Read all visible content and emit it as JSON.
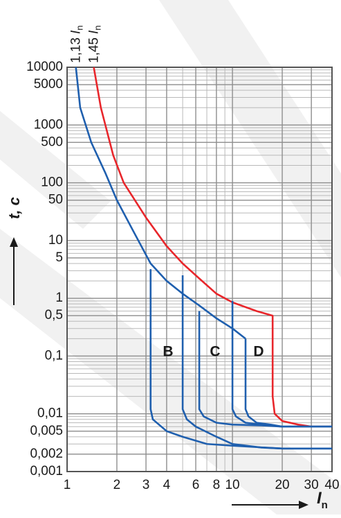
{
  "chart_data": {
    "type": "line",
    "log_x": true,
    "log_y": true,
    "grid": true,
    "minor_grid": true,
    "xlim": [
      1,
      40
    ],
    "ylim": [
      0.001,
      10000
    ],
    "xticks": [
      1,
      2,
      3,
      4,
      6,
      8,
      10,
      20,
      30,
      40
    ],
    "yticks": [
      10000,
      5000,
      1000,
      500,
      100,
      50,
      10,
      5,
      1,
      {
        "value": 0.5,
        "label": "0,5"
      },
      {
        "value": 0.1,
        "label": "0,1"
      },
      {
        "value": 0.01,
        "label": "0,01"
      },
      {
        "value": 0.005,
        "label": "0,005"
      },
      {
        "value": 0.002,
        "label": "0,002"
      },
      {
        "value": 0.001,
        "label": "0,001"
      }
    ],
    "y_label": "t, c",
    "x_label": {
      "symbol": "I",
      "subscript": "n"
    },
    "annotations": [
      {
        "text": "1,13",
        "symbol": "I",
        "subscript": "n",
        "x": 1.13
      },
      {
        "text": "1,45",
        "symbol": "I",
        "subscript": "n",
        "x": 1.45
      }
    ],
    "curve_labels": [
      "B",
      "C",
      "D"
    ],
    "series": [
      {
        "color": "#e8262b",
        "x": [
          1.45,
          1.6,
          1.9,
          2.2,
          3,
          4,
          5,
          6.3,
          8,
          10,
          14,
          17.5,
          17.5,
          18,
          20,
          25,
          30,
          40
        ],
        "values": [
          10000,
          2000,
          300,
          100,
          25,
          8,
          4,
          2.2,
          1.2,
          0.85,
          0.6,
          0.5,
          0.02,
          0.01,
          0.0075,
          0.0065,
          0.006,
          0.006
        ]
      },
      {
        "color": "#1f5fae",
        "x": [
          1.13,
          1.2,
          1.4,
          1.7,
          2,
          2.5,
          3.2,
          4,
          5,
          6.3,
          8,
          10,
          12
        ],
        "values": [
          10000,
          2000,
          500,
          150,
          50,
          15,
          4,
          2,
          1.2,
          0.75,
          0.45,
          0.3,
          0.2
        ]
      },
      {
        "color": "#1f5fae",
        "x": [
          3.2,
          3.2,
          3.3,
          4,
          5,
          7,
          10,
          20,
          40
        ],
        "values": [
          3.2,
          0.012,
          0.008,
          0.005,
          0.004,
          0.003,
          0.0028,
          0.0025,
          0.0025
        ]
      },
      {
        "color": "#1f5fae",
        "x": [
          5,
          5,
          5.3,
          6,
          8,
          10,
          15,
          20,
          40
        ],
        "values": [
          2.5,
          0.012,
          0.008,
          0.006,
          0.004,
          0.003,
          0.0026,
          0.0025,
          0.0025
        ]
      },
      {
        "color": "#1f5fae",
        "x": [
          6.3,
          6.3,
          6.7,
          8,
          10,
          15,
          20,
          40
        ],
        "values": [
          0.6,
          0.012,
          0.009,
          0.007,
          0.0065,
          0.0063,
          0.006,
          0.006
        ]
      },
      {
        "color": "#1f5fae",
        "x": [
          10,
          10,
          10.5,
          12,
          15,
          20,
          40
        ],
        "values": [
          0.9,
          0.012,
          0.009,
          0.007,
          0.0065,
          0.006,
          0.006
        ]
      },
      {
        "color": "#1f5fae",
        "x": [
          12,
          12,
          12.5,
          14,
          17,
          20,
          40
        ],
        "values": [
          0.2,
          0.012,
          0.009,
          0.007,
          0.0065,
          0.006,
          0.006
        ]
      }
    ]
  }
}
